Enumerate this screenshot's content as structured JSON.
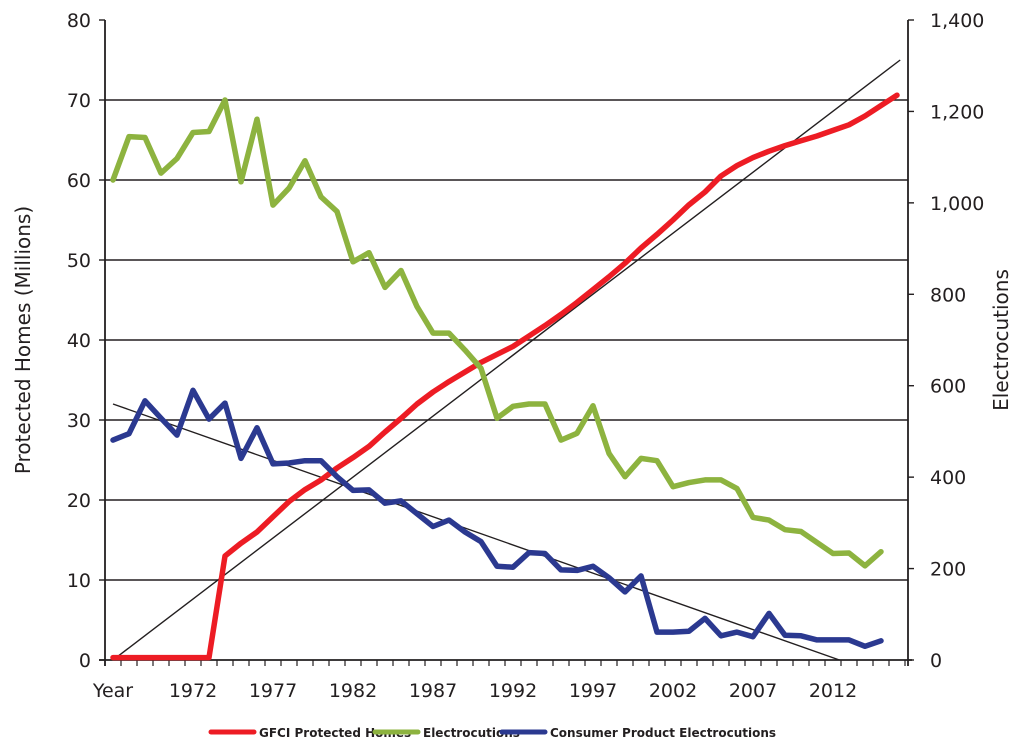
{
  "chart_data": {
    "type": "line",
    "title": "",
    "xlabel": "",
    "ylabel_left": "Protected Homes (Millions)",
    "ylabel_right": "Electrocutions",
    "ylim_left": [
      0,
      80
    ],
    "ylim_right": [
      0,
      1400
    ],
    "yticks_left": [
      "0",
      "10",
      "20",
      "30",
      "40",
      "50",
      "60",
      "70",
      "80"
    ],
    "yticks_right": [
      "0",
      "200",
      "400",
      "600",
      "800",
      "1,000",
      "1,200",
      "1,400"
    ],
    "grid": "horizontal",
    "legend_position": "bottom",
    "x_first_label": "Year",
    "x": [
      1967,
      1968,
      1969,
      1970,
      1971,
      1972,
      1973,
      1974,
      1975,
      1976,
      1977,
      1978,
      1979,
      1980,
      1981,
      1982,
      1983,
      1984,
      1985,
      1986,
      1987,
      1988,
      1989,
      1990,
      1991,
      1992,
      1993,
      1994,
      1995,
      1996,
      1997,
      1998,
      1999,
      2000,
      2001,
      2002,
      2003,
      2004,
      2005,
      2006,
      2007,
      2008,
      2009,
      2010,
      2011,
      2012,
      2013,
      2014,
      2015,
      2016
    ],
    "x_tick_labels": [
      "Year",
      "1972",
      "1977",
      "1982",
      "1987",
      "1992",
      "1997",
      "2002",
      "2007",
      "2012"
    ],
    "series": [
      {
        "name": "GFCI Protected Homes",
        "axis": "left",
        "color": "#ED1C24",
        "values": [
          0.3,
          0.3,
          0.3,
          0.3,
          0.3,
          0.3,
          0.3,
          13.0,
          14.6,
          16.0,
          17.9,
          19.8,
          21.3,
          22.5,
          24.0,
          25.3,
          26.7,
          28.5,
          30.2,
          32.0,
          33.5,
          34.8,
          36.0,
          37.2,
          38.2,
          39.2,
          40.5,
          41.8,
          43.2,
          44.7,
          46.3,
          47.9,
          49.6,
          51.5,
          53.2,
          55.0,
          56.9,
          58.5,
          60.5,
          61.8,
          62.8,
          63.6,
          64.3,
          64.9,
          65.5,
          66.2,
          66.9,
          68.0,
          69.3,
          70.6
        ]
      },
      {
        "name": "Electrocutions",
        "axis": "right",
        "color": "#8DB33F",
        "values": [
          1050,
          1145,
          1143,
          1065,
          1097,
          1154,
          1156,
          1225,
          1046,
          1183,
          995,
          1032,
          1092,
          1013,
          981,
          871,
          891,
          815,
          852,
          773,
          715,
          715,
          678,
          638,
          529,
          555,
          560,
          560,
          481,
          496,
          556,
          452,
          401,
          441,
          436,
          379,
          388,
          394,
          394,
          375,
          312,
          306,
          285,
          281,
          257,
          233,
          234,
          206,
          237,
          null
        ]
      },
      {
        "name": "Consumer Product Electrocutions",
        "axis": "right",
        "color": "#2B3990",
        "values": [
          481,
          495,
          567,
          529,
          492,
          590,
          527,
          562,
          441,
          508,
          429,
          431,
          436,
          436,
          401,
          371,
          372,
          343,
          348,
          320,
          292,
          306,
          280,
          259,
          205,
          203,
          235,
          233,
          197,
          196,
          205,
          180,
          149,
          184,
          61,
          61,
          63,
          91,
          53,
          61,
          51,
          102,
          54,
          53,
          44,
          44,
          44,
          30,
          42,
          null
        ]
      }
    ],
    "trendlines": [
      {
        "of": "GFCI Protected Homes",
        "axis": "left",
        "color": "#231f20",
        "start": [
          1967,
          0
        ],
        "end": [
          2016.2,
          75
        ]
      },
      {
        "of": "Consumer Product Electrocutions",
        "axis": "right",
        "color": "#231f20",
        "start": [
          1967,
          560
        ],
        "end": [
          2012.4,
          0
        ]
      }
    ]
  }
}
